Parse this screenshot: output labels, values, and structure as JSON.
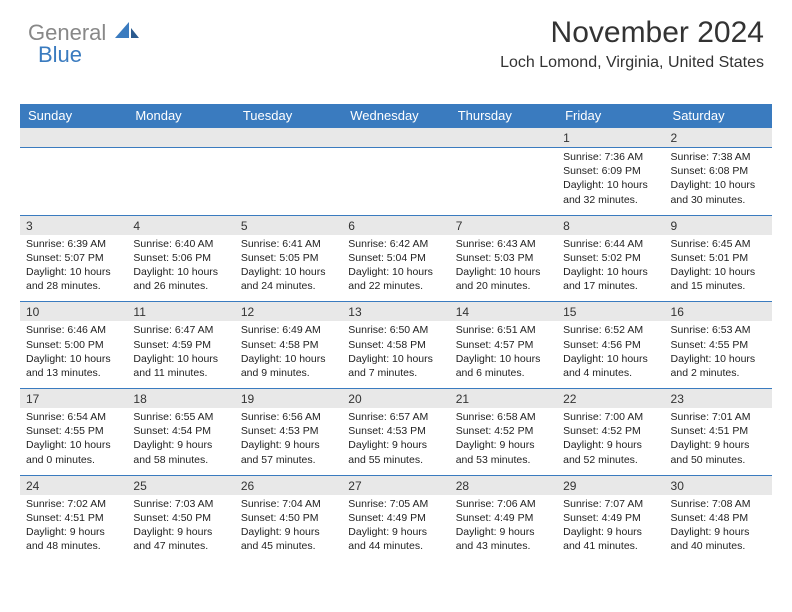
{
  "logo": {
    "text1": "General",
    "text2": "Blue"
  },
  "header": {
    "month_title": "November 2024",
    "location": "Loch Lomond, Virginia, United States"
  },
  "columns": [
    "Sunday",
    "Monday",
    "Tuesday",
    "Wednesday",
    "Thursday",
    "Friday",
    "Saturday"
  ],
  "colors": {
    "header_bg": "#3a7bbf",
    "header_fg": "#ffffff",
    "daynum_bg": "#e8e8e8",
    "divider": "#3a7bbf",
    "text": "#222222"
  },
  "weeks": [
    [
      null,
      null,
      null,
      null,
      null,
      {
        "day": "1",
        "sunrise": "7:36 AM",
        "sunset": "6:09 PM",
        "daylight1": "Daylight: 10 hours",
        "daylight2": "and 32 minutes."
      },
      {
        "day": "2",
        "sunrise": "7:38 AM",
        "sunset": "6:08 PM",
        "daylight1": "Daylight: 10 hours",
        "daylight2": "and 30 minutes."
      }
    ],
    [
      {
        "day": "3",
        "sunrise": "6:39 AM",
        "sunset": "5:07 PM",
        "daylight1": "Daylight: 10 hours",
        "daylight2": "and 28 minutes."
      },
      {
        "day": "4",
        "sunrise": "6:40 AM",
        "sunset": "5:06 PM",
        "daylight1": "Daylight: 10 hours",
        "daylight2": "and 26 minutes."
      },
      {
        "day": "5",
        "sunrise": "6:41 AM",
        "sunset": "5:05 PM",
        "daylight1": "Daylight: 10 hours",
        "daylight2": "and 24 minutes."
      },
      {
        "day": "6",
        "sunrise": "6:42 AM",
        "sunset": "5:04 PM",
        "daylight1": "Daylight: 10 hours",
        "daylight2": "and 22 minutes."
      },
      {
        "day": "7",
        "sunrise": "6:43 AM",
        "sunset": "5:03 PM",
        "daylight1": "Daylight: 10 hours",
        "daylight2": "and 20 minutes."
      },
      {
        "day": "8",
        "sunrise": "6:44 AM",
        "sunset": "5:02 PM",
        "daylight1": "Daylight: 10 hours",
        "daylight2": "and 17 minutes."
      },
      {
        "day": "9",
        "sunrise": "6:45 AM",
        "sunset": "5:01 PM",
        "daylight1": "Daylight: 10 hours",
        "daylight2": "and 15 minutes."
      }
    ],
    [
      {
        "day": "10",
        "sunrise": "6:46 AM",
        "sunset": "5:00 PM",
        "daylight1": "Daylight: 10 hours",
        "daylight2": "and 13 minutes."
      },
      {
        "day": "11",
        "sunrise": "6:47 AM",
        "sunset": "4:59 PM",
        "daylight1": "Daylight: 10 hours",
        "daylight2": "and 11 minutes."
      },
      {
        "day": "12",
        "sunrise": "6:49 AM",
        "sunset": "4:58 PM",
        "daylight1": "Daylight: 10 hours",
        "daylight2": "and 9 minutes."
      },
      {
        "day": "13",
        "sunrise": "6:50 AM",
        "sunset": "4:58 PM",
        "daylight1": "Daylight: 10 hours",
        "daylight2": "and 7 minutes."
      },
      {
        "day": "14",
        "sunrise": "6:51 AM",
        "sunset": "4:57 PM",
        "daylight1": "Daylight: 10 hours",
        "daylight2": "and 6 minutes."
      },
      {
        "day": "15",
        "sunrise": "6:52 AM",
        "sunset": "4:56 PM",
        "daylight1": "Daylight: 10 hours",
        "daylight2": "and 4 minutes."
      },
      {
        "day": "16",
        "sunrise": "6:53 AM",
        "sunset": "4:55 PM",
        "daylight1": "Daylight: 10 hours",
        "daylight2": "and 2 minutes."
      }
    ],
    [
      {
        "day": "17",
        "sunrise": "6:54 AM",
        "sunset": "4:55 PM",
        "daylight1": "Daylight: 10 hours",
        "daylight2": "and 0 minutes."
      },
      {
        "day": "18",
        "sunrise": "6:55 AM",
        "sunset": "4:54 PM",
        "daylight1": "Daylight: 9 hours",
        "daylight2": "and 58 minutes."
      },
      {
        "day": "19",
        "sunrise": "6:56 AM",
        "sunset": "4:53 PM",
        "daylight1": "Daylight: 9 hours",
        "daylight2": "and 57 minutes."
      },
      {
        "day": "20",
        "sunrise": "6:57 AM",
        "sunset": "4:53 PM",
        "daylight1": "Daylight: 9 hours",
        "daylight2": "and 55 minutes."
      },
      {
        "day": "21",
        "sunrise": "6:58 AM",
        "sunset": "4:52 PM",
        "daylight1": "Daylight: 9 hours",
        "daylight2": "and 53 minutes."
      },
      {
        "day": "22",
        "sunrise": "7:00 AM",
        "sunset": "4:52 PM",
        "daylight1": "Daylight: 9 hours",
        "daylight2": "and 52 minutes."
      },
      {
        "day": "23",
        "sunrise": "7:01 AM",
        "sunset": "4:51 PM",
        "daylight1": "Daylight: 9 hours",
        "daylight2": "and 50 minutes."
      }
    ],
    [
      {
        "day": "24",
        "sunrise": "7:02 AM",
        "sunset": "4:51 PM",
        "daylight1": "Daylight: 9 hours",
        "daylight2": "and 48 minutes."
      },
      {
        "day": "25",
        "sunrise": "7:03 AM",
        "sunset": "4:50 PM",
        "daylight1": "Daylight: 9 hours",
        "daylight2": "and 47 minutes."
      },
      {
        "day": "26",
        "sunrise": "7:04 AM",
        "sunset": "4:50 PM",
        "daylight1": "Daylight: 9 hours",
        "daylight2": "and 45 minutes."
      },
      {
        "day": "27",
        "sunrise": "7:05 AM",
        "sunset": "4:49 PM",
        "daylight1": "Daylight: 9 hours",
        "daylight2": "and 44 minutes."
      },
      {
        "day": "28",
        "sunrise": "7:06 AM",
        "sunset": "4:49 PM",
        "daylight1": "Daylight: 9 hours",
        "daylight2": "and 43 minutes."
      },
      {
        "day": "29",
        "sunrise": "7:07 AM",
        "sunset": "4:49 PM",
        "daylight1": "Daylight: 9 hours",
        "daylight2": "and 41 minutes."
      },
      {
        "day": "30",
        "sunrise": "7:08 AM",
        "sunset": "4:48 PM",
        "daylight1": "Daylight: 9 hours",
        "daylight2": "and 40 minutes."
      }
    ]
  ]
}
